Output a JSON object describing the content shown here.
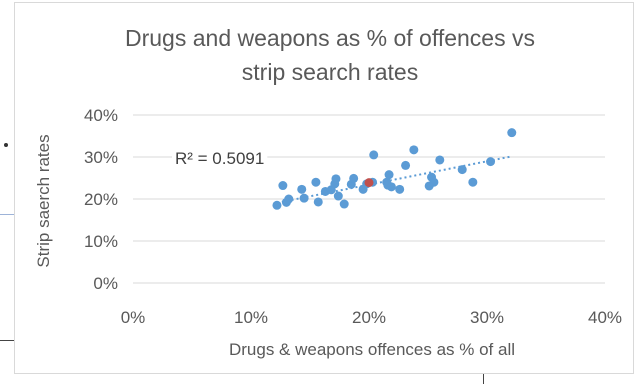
{
  "chart_data": {
    "type": "scatter",
    "title_lines": [
      "Drugs and weapons as % of offences vs",
      "strip search rates"
    ],
    "xlabel": "Drugs & weapons offences as % of all",
    "ylabel": "Strip saerch rates",
    "xlim": [
      0,
      40
    ],
    "ylim": [
      0,
      40
    ],
    "x_ticks": [
      0,
      10,
      20,
      30,
      40
    ],
    "y_ticks": [
      0,
      10,
      20,
      30,
      40
    ],
    "x_tick_labels": [
      "0%",
      "10%",
      "20%",
      "30%",
      "40%"
    ],
    "y_tick_labels": [
      "0%",
      "10%",
      "20%",
      "30%",
      "40%"
    ],
    "grid": "horizontal",
    "legend": "none",
    "point_color": "#5b9bd5",
    "highlight_color": "#c0504d",
    "points": [
      {
        "x": 12.2,
        "y": 18.5
      },
      {
        "x": 12.7,
        "y": 23.2
      },
      {
        "x": 13.0,
        "y": 19.2
      },
      {
        "x": 13.2,
        "y": 20.0
      },
      {
        "x": 14.3,
        "y": 22.3
      },
      {
        "x": 14.5,
        "y": 20.2
      },
      {
        "x": 15.5,
        "y": 24.0
      },
      {
        "x": 15.7,
        "y": 19.3
      },
      {
        "x": 16.3,
        "y": 21.8
      },
      {
        "x": 16.8,
        "y": 22.2
      },
      {
        "x": 17.1,
        "y": 23.6
      },
      {
        "x": 17.2,
        "y": 24.8
      },
      {
        "x": 17.4,
        "y": 20.7
      },
      {
        "x": 17.9,
        "y": 18.8
      },
      {
        "x": 18.5,
        "y": 23.5
      },
      {
        "x": 18.7,
        "y": 24.9
      },
      {
        "x": 19.5,
        "y": 22.3
      },
      {
        "x": 19.8,
        "y": 23.6
      },
      {
        "x": 20.3,
        "y": 24.0
      },
      {
        "x": 20.4,
        "y": 30.5
      },
      {
        "x": 21.5,
        "y": 24.0
      },
      {
        "x": 21.6,
        "y": 23.3
      },
      {
        "x": 21.7,
        "y": 25.8
      },
      {
        "x": 21.9,
        "y": 22.9
      },
      {
        "x": 22.6,
        "y": 22.3
      },
      {
        "x": 23.1,
        "y": 28.0
      },
      {
        "x": 23.8,
        "y": 31.7
      },
      {
        "x": 25.1,
        "y": 23.1
      },
      {
        "x": 25.3,
        "y": 25.2
      },
      {
        "x": 25.5,
        "y": 24.0
      },
      {
        "x": 26.0,
        "y": 29.3
      },
      {
        "x": 27.9,
        "y": 27.0
      },
      {
        "x": 28.8,
        "y": 24.0
      },
      {
        "x": 30.3,
        "y": 28.9
      },
      {
        "x": 32.1,
        "y": 35.8
      }
    ],
    "highlight_point": {
      "x": 20.0,
      "y": 23.9
    },
    "trendline": {
      "style": "dotted",
      "x_start": 12.2,
      "x_end": 32.1,
      "slope": 0.556,
      "intercept": 12.3
    },
    "r2_label": "R² = 0.5091"
  }
}
